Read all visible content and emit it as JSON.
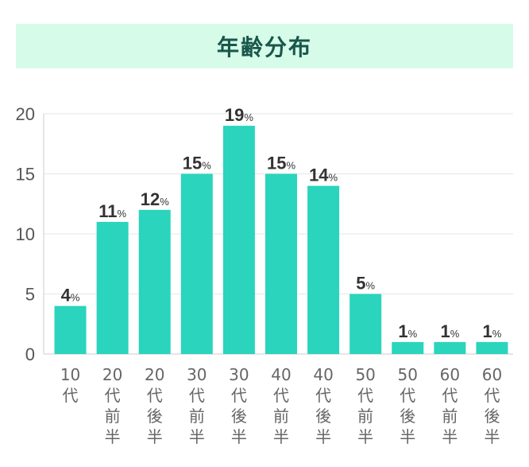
{
  "chart_data": {
    "type": "bar",
    "title": "年齢分布",
    "categories": [
      [
        "10",
        "代"
      ],
      [
        "20",
        "代",
        "前",
        "半"
      ],
      [
        "20",
        "代",
        "後",
        "半"
      ],
      [
        "30",
        "代",
        "前",
        "半"
      ],
      [
        "30",
        "代",
        "後",
        "半"
      ],
      [
        "40",
        "代",
        "前",
        "半"
      ],
      [
        "40",
        "代",
        "後",
        "半"
      ],
      [
        "50",
        "代",
        "前",
        "半"
      ],
      [
        "50",
        "代",
        "後",
        "半"
      ],
      [
        "60",
        "代",
        "前",
        "半"
      ],
      [
        "60",
        "代",
        "後",
        "半"
      ]
    ],
    "values": [
      4,
      11,
      12,
      15,
      19,
      15,
      14,
      5,
      1,
      1,
      1
    ],
    "value_suffix": "%",
    "ylim": [
      0,
      20
    ],
    "yticks": [
      0,
      5,
      10,
      15,
      20
    ],
    "grid": true,
    "bar_color": "#2ad4bd"
  }
}
